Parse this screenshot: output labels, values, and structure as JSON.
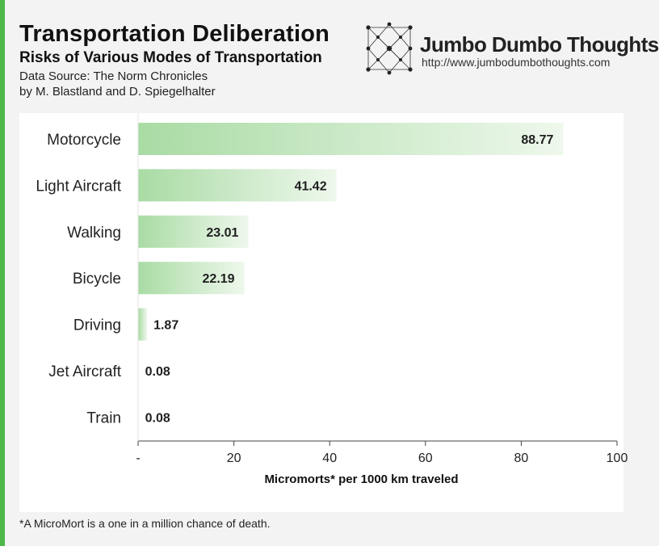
{
  "header": {
    "title": "Transportation Deliberation",
    "subtitle": "Risks of Various Modes of Transportation",
    "source_line1": "Data Source: The Norm Chronicles",
    "source_line2": "by M. Blastland and D. Spiegelhalter"
  },
  "brand": {
    "name": "Jumbo Dumbo Thoughts",
    "url": "http://www.jumbodumbothoughts.com",
    "logo_icon": "network-dots-icon"
  },
  "footnote": "*A MicroMort is a one in a million chance of death.",
  "colors": {
    "accent": "#4cb848",
    "bar_start": "#a9dba4",
    "bar_end": "#eef8ec"
  },
  "chart_data": {
    "type": "bar",
    "orientation": "horizontal",
    "categories": [
      "Motorcycle",
      "Light Aircraft",
      "Walking",
      "Bicycle",
      "Driving",
      "Jet Aircraft",
      "Train"
    ],
    "values": [
      88.77,
      41.42,
      23.01,
      22.19,
      1.87,
      0.08,
      0.08
    ],
    "value_labels": [
      "88.77",
      "41.42",
      "23.01",
      "22.19",
      "1.87",
      "0.08",
      "0.08"
    ],
    "title": "",
    "xlabel": "Micromorts* per 1000 km traveled",
    "ylabel": "",
    "xlim": [
      0,
      100
    ],
    "xticks": [
      0,
      20,
      40,
      60,
      80,
      100
    ],
    "xtick_labels": [
      "-",
      "20",
      "40",
      "60",
      "80",
      "100"
    ],
    "grid": false,
    "legend": "none"
  }
}
